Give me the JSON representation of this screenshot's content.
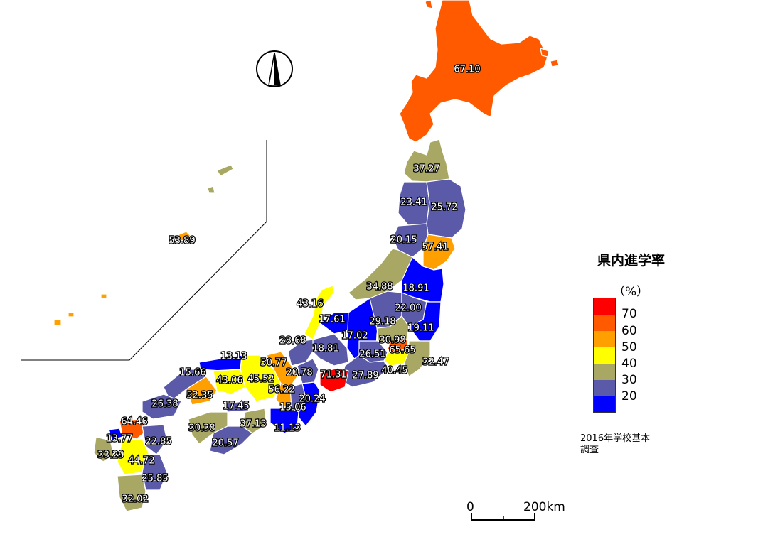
{
  "legend": {
    "title": "県内進学率",
    "unit": "（%）",
    "classes": [
      {
        "label": "70",
        "color": "#ff0000"
      },
      {
        "label": "60",
        "color": "#ff5a00"
      },
      {
        "label": "50",
        "color": "#ffa000"
      },
      {
        "label": "40",
        "color": "#ffff00"
      },
      {
        "label": "30",
        "color": "#a8a864"
      },
      {
        "label": "20",
        "color": "#5a5aa8"
      },
      {
        "label": "",
        "color": "#0000ff"
      }
    ],
    "bottom_label": "20"
  },
  "source": {
    "line1": "2016年学校基本",
    "line2": "調査"
  },
  "scale_bar": {
    "start": "0",
    "end": "200km"
  },
  "values": [
    "67.10",
    "37.27",
    "23.41",
    "25.72",
    "20.15",
    "57.41",
    "34.88",
    "18.91",
    "43.16",
    "22.00",
    "17.61",
    "29.18",
    "19.11",
    "28.68",
    "17.02",
    "30.98",
    "18.81",
    "26.51",
    "65.65",
    "32.47",
    "13.13",
    "50.77",
    "40.45",
    "15.66",
    "43.06",
    "45.52",
    "20.78",
    "71.31",
    "27.89",
    "56.22",
    "52.35",
    "20.24",
    "26.38",
    "17.45",
    "15.06",
    "37.13",
    "11.13",
    "64.46",
    "30.38",
    "20.57",
    "13.77",
    "22.85",
    "33.29",
    "44.72",
    "25.85",
    "32.02",
    "53.89"
  ]
}
